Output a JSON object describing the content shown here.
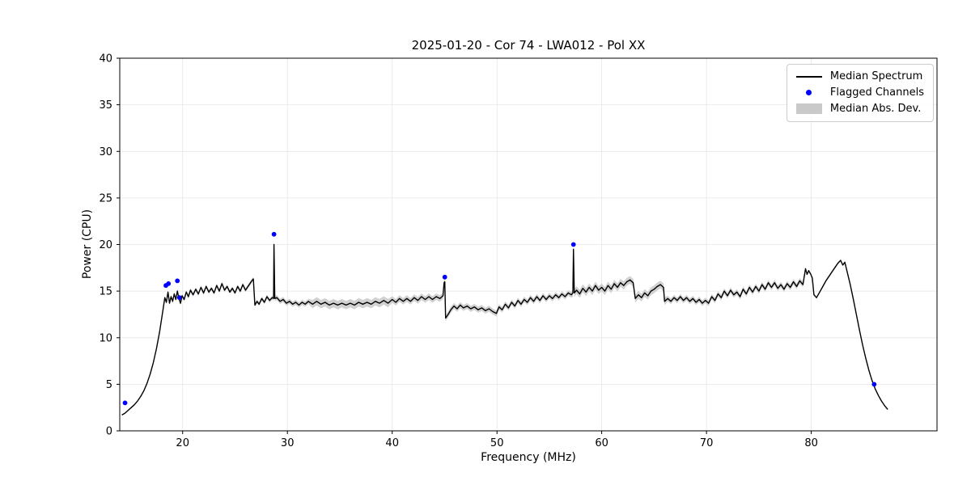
{
  "chart_data": {
    "type": "line",
    "title": "2025-01-20 - Cor 74 - LWA012 - Pol XX",
    "xlabel": "Frequency (MHz)",
    "ylabel": "Power (CPU)",
    "xlim": [
      14.0,
      92.0
    ],
    "ylim": [
      0,
      40
    ],
    "xticks": [
      20,
      30,
      40,
      50,
      60,
      70,
      80
    ],
    "yticks": [
      0,
      5,
      10,
      15,
      20,
      25,
      30,
      35,
      40
    ],
    "grid": true,
    "legend_position": "upper right",
    "colors": {
      "grid": "#e6e6e6",
      "axis": "#000000"
    },
    "series": [
      {
        "name": "Median Spectrum",
        "type": "line",
        "color": "#000000",
        "points": [
          [
            14.2,
            1.7
          ],
          [
            14.5,
            1.9
          ],
          [
            14.8,
            2.2
          ],
          [
            15.1,
            2.5
          ],
          [
            15.4,
            2.8
          ],
          [
            15.7,
            3.2
          ],
          [
            16.0,
            3.7
          ],
          [
            16.3,
            4.3
          ],
          [
            16.6,
            5.1
          ],
          [
            16.9,
            6.1
          ],
          [
            17.2,
            7.3
          ],
          [
            17.5,
            8.8
          ],
          [
            17.8,
            10.6
          ],
          [
            18.1,
            12.8
          ],
          [
            18.3,
            14.3
          ],
          [
            18.45,
            13.8
          ],
          [
            18.6,
            14.9
          ],
          [
            18.75,
            13.7
          ],
          [
            18.9,
            14.4
          ],
          [
            19.05,
            13.9
          ],
          [
            19.2,
            14.7
          ],
          [
            19.35,
            14.1
          ],
          [
            19.5,
            15.0
          ],
          [
            19.65,
            14.2
          ],
          [
            19.8,
            13.7
          ],
          [
            19.95,
            14.5
          ],
          [
            20.15,
            14.1
          ],
          [
            20.35,
            14.9
          ],
          [
            20.55,
            14.4
          ],
          [
            20.75,
            15.1
          ],
          [
            21.0,
            14.6
          ],
          [
            21.25,
            15.2
          ],
          [
            21.5,
            14.7
          ],
          [
            21.75,
            15.4
          ],
          [
            22.0,
            14.8
          ],
          [
            22.25,
            15.5
          ],
          [
            22.5,
            14.9
          ],
          [
            22.75,
            15.3
          ],
          [
            23.0,
            14.8
          ],
          [
            23.25,
            15.6
          ],
          [
            23.5,
            15.0
          ],
          [
            23.75,
            15.8
          ],
          [
            24.0,
            15.1
          ],
          [
            24.25,
            15.5
          ],
          [
            24.5,
            14.9
          ],
          [
            24.75,
            15.3
          ],
          [
            25.0,
            14.8
          ],
          [
            25.25,
            15.5
          ],
          [
            25.5,
            15.0
          ],
          [
            25.75,
            15.7
          ],
          [
            26.0,
            15.1
          ],
          [
            26.3,
            15.6
          ],
          [
            26.6,
            16.1
          ],
          [
            26.75,
            16.3
          ],
          [
            26.9,
            13.5
          ],
          [
            27.1,
            13.9
          ],
          [
            27.3,
            13.6
          ],
          [
            27.55,
            14.2
          ],
          [
            27.8,
            13.8
          ],
          [
            28.05,
            14.4
          ],
          [
            28.3,
            14.0
          ],
          [
            28.55,
            14.3
          ],
          [
            28.68,
            14.2
          ],
          [
            28.72,
            20.0
          ],
          [
            28.8,
            14.2
          ],
          [
            29.0,
            14.3
          ],
          [
            29.3,
            13.9
          ],
          [
            29.6,
            14.1
          ],
          [
            29.9,
            13.7
          ],
          [
            30.2,
            13.9
          ],
          [
            30.5,
            13.6
          ],
          [
            30.8,
            13.8
          ],
          [
            31.1,
            13.5
          ],
          [
            31.4,
            13.8
          ],
          [
            31.7,
            13.6
          ],
          [
            32.0,
            13.9
          ],
          [
            32.4,
            13.6
          ],
          [
            32.8,
            13.9
          ],
          [
            33.2,
            13.6
          ],
          [
            33.6,
            13.8
          ],
          [
            34.0,
            13.5
          ],
          [
            34.4,
            13.7
          ],
          [
            34.8,
            13.5
          ],
          [
            35.2,
            13.7
          ],
          [
            35.6,
            13.5
          ],
          [
            36.0,
            13.7
          ],
          [
            36.4,
            13.5
          ],
          [
            36.8,
            13.8
          ],
          [
            37.2,
            13.6
          ],
          [
            37.6,
            13.8
          ],
          [
            38.0,
            13.6
          ],
          [
            38.4,
            13.9
          ],
          [
            38.8,
            13.7
          ],
          [
            39.2,
            14.0
          ],
          [
            39.6,
            13.7
          ],
          [
            40.0,
            14.1
          ],
          [
            40.35,
            13.8
          ],
          [
            40.7,
            14.2
          ],
          [
            41.05,
            13.9
          ],
          [
            41.4,
            14.2
          ],
          [
            41.75,
            13.9
          ],
          [
            42.1,
            14.3
          ],
          [
            42.45,
            14.0
          ],
          [
            42.8,
            14.4
          ],
          [
            43.15,
            14.1
          ],
          [
            43.5,
            14.4
          ],
          [
            43.85,
            14.1
          ],
          [
            44.2,
            14.4
          ],
          [
            44.55,
            14.2
          ],
          [
            44.85,
            14.5
          ],
          [
            44.95,
            15.9
          ],
          [
            45.02,
            16.0
          ],
          [
            45.1,
            12.1
          ],
          [
            45.35,
            12.5
          ],
          [
            45.6,
            13.0
          ],
          [
            45.9,
            13.4
          ],
          [
            46.2,
            13.1
          ],
          [
            46.5,
            13.5
          ],
          [
            46.8,
            13.2
          ],
          [
            47.15,
            13.4
          ],
          [
            47.5,
            13.1
          ],
          [
            47.85,
            13.3
          ],
          [
            48.2,
            13.0
          ],
          [
            48.55,
            13.2
          ],
          [
            48.9,
            12.9
          ],
          [
            49.25,
            13.1
          ],
          [
            49.6,
            12.8
          ],
          [
            49.95,
            12.6
          ],
          [
            50.2,
            13.3
          ],
          [
            50.5,
            13.0
          ],
          [
            50.8,
            13.6
          ],
          [
            51.1,
            13.2
          ],
          [
            51.4,
            13.8
          ],
          [
            51.7,
            13.4
          ],
          [
            52.0,
            14.0
          ],
          [
            52.3,
            13.6
          ],
          [
            52.6,
            14.1
          ],
          [
            52.9,
            13.8
          ],
          [
            53.2,
            14.3
          ],
          [
            53.5,
            13.9
          ],
          [
            53.8,
            14.4
          ],
          [
            54.1,
            14.0
          ],
          [
            54.4,
            14.5
          ],
          [
            54.7,
            14.1
          ],
          [
            55.0,
            14.5
          ],
          [
            55.3,
            14.2
          ],
          [
            55.6,
            14.6
          ],
          [
            55.9,
            14.3
          ],
          [
            56.2,
            14.7
          ],
          [
            56.5,
            14.4
          ],
          [
            56.8,
            14.8
          ],
          [
            57.1,
            14.6
          ],
          [
            57.25,
            14.8
          ],
          [
            57.3,
            19.5
          ],
          [
            57.38,
            14.8
          ],
          [
            57.6,
            15.1
          ],
          [
            57.9,
            14.7
          ],
          [
            58.2,
            15.3
          ],
          [
            58.5,
            14.9
          ],
          [
            58.8,
            15.4
          ],
          [
            59.1,
            15.0
          ],
          [
            59.4,
            15.6
          ],
          [
            59.7,
            15.1
          ],
          [
            60.0,
            15.4
          ],
          [
            60.3,
            15.0
          ],
          [
            60.6,
            15.6
          ],
          [
            60.9,
            15.2
          ],
          [
            61.2,
            15.8
          ],
          [
            61.5,
            15.4
          ],
          [
            61.8,
            15.9
          ],
          [
            62.1,
            15.6
          ],
          [
            62.4,
            16.0
          ],
          [
            62.7,
            16.2
          ],
          [
            63.0,
            15.9
          ],
          [
            63.2,
            14.2
          ],
          [
            63.5,
            14.6
          ],
          [
            63.8,
            14.3
          ],
          [
            64.1,
            14.8
          ],
          [
            64.4,
            14.5
          ],
          [
            64.7,
            15.0
          ],
          [
            65.0,
            15.2
          ],
          [
            65.3,
            15.5
          ],
          [
            65.6,
            15.7
          ],
          [
            65.9,
            15.4
          ],
          [
            66.0,
            13.9
          ],
          [
            66.3,
            14.2
          ],
          [
            66.6,
            13.9
          ],
          [
            66.9,
            14.3
          ],
          [
            67.2,
            14.0
          ],
          [
            67.5,
            14.4
          ],
          [
            67.8,
            14.0
          ],
          [
            68.1,
            14.3
          ],
          [
            68.4,
            13.9
          ],
          [
            68.7,
            14.2
          ],
          [
            69.0,
            13.8
          ],
          [
            69.3,
            14.1
          ],
          [
            69.6,
            13.7
          ],
          [
            69.9,
            14.0
          ],
          [
            70.2,
            13.7
          ],
          [
            70.5,
            14.4
          ],
          [
            70.8,
            14.0
          ],
          [
            71.1,
            14.7
          ],
          [
            71.4,
            14.3
          ],
          [
            71.7,
            15.0
          ],
          [
            72.0,
            14.5
          ],
          [
            72.3,
            15.1
          ],
          [
            72.6,
            14.6
          ],
          [
            72.9,
            14.9
          ],
          [
            73.2,
            14.4
          ],
          [
            73.5,
            15.2
          ],
          [
            73.8,
            14.7
          ],
          [
            74.1,
            15.4
          ],
          [
            74.4,
            14.9
          ],
          [
            74.7,
            15.5
          ],
          [
            75.0,
            15.0
          ],
          [
            75.3,
            15.7
          ],
          [
            75.6,
            15.2
          ],
          [
            75.9,
            15.9
          ],
          [
            76.2,
            15.4
          ],
          [
            76.5,
            15.9
          ],
          [
            76.8,
            15.3
          ],
          [
            77.1,
            15.7
          ],
          [
            77.4,
            15.2
          ],
          [
            77.7,
            15.8
          ],
          [
            78.0,
            15.4
          ],
          [
            78.3,
            16.0
          ],
          [
            78.6,
            15.5
          ],
          [
            78.9,
            16.1
          ],
          [
            79.2,
            15.7
          ],
          [
            79.45,
            17.4
          ],
          [
            79.6,
            16.8
          ],
          [
            79.75,
            17.2
          ],
          [
            79.95,
            16.8
          ],
          [
            80.1,
            16.4
          ],
          [
            80.25,
            14.6
          ],
          [
            80.5,
            14.3
          ],
          [
            80.8,
            14.9
          ],
          [
            81.1,
            15.5
          ],
          [
            81.4,
            16.1
          ],
          [
            81.7,
            16.6
          ],
          [
            82.0,
            17.1
          ],
          [
            82.3,
            17.6
          ],
          [
            82.55,
            18.0
          ],
          [
            82.8,
            18.3
          ],
          [
            83.0,
            17.8
          ],
          [
            83.2,
            18.1
          ],
          [
            83.4,
            17.2
          ],
          [
            83.7,
            15.8
          ],
          [
            84.0,
            14.2
          ],
          [
            84.3,
            12.5
          ],
          [
            84.6,
            10.8
          ],
          [
            84.9,
            9.2
          ],
          [
            85.2,
            7.8
          ],
          [
            85.5,
            6.5
          ],
          [
            85.8,
            5.4
          ],
          [
            86.1,
            4.5
          ],
          [
            86.4,
            3.8
          ],
          [
            86.7,
            3.2
          ],
          [
            87.0,
            2.7
          ],
          [
            87.3,
            2.3
          ]
        ]
      },
      {
        "name": "Flagged Channels",
        "type": "scatter",
        "color": "#0000ff",
        "points": [
          [
            14.5,
            3.0
          ],
          [
            18.4,
            15.6
          ],
          [
            18.65,
            15.8
          ],
          [
            19.5,
            16.1
          ],
          [
            19.7,
            14.3
          ],
          [
            28.72,
            21.1
          ],
          [
            45.02,
            16.5
          ],
          [
            57.3,
            20.0
          ],
          [
            86.0,
            5.0
          ]
        ]
      },
      {
        "name": "Median Abs. Dev.",
        "type": "band",
        "color": "#c9c9c9",
        "around": "Median Spectrum",
        "halfwidth_segments": [
          {
            "from": 14.0,
            "to": 18.2,
            "hw": 0.06
          },
          {
            "from": 18.2,
            "to": 28.6,
            "hw": 0.22
          },
          {
            "from": 28.6,
            "to": 32.0,
            "hw": 0.28
          },
          {
            "from": 32.0,
            "to": 39.6,
            "hw": 0.45
          },
          {
            "from": 39.6,
            "to": 44.9,
            "hw": 0.35
          },
          {
            "from": 44.9,
            "to": 50.0,
            "hw": 0.32
          },
          {
            "from": 50.0,
            "to": 57.2,
            "hw": 0.3
          },
          {
            "from": 57.2,
            "to": 66.0,
            "hw": 0.42
          },
          {
            "from": 66.0,
            "to": 79.3,
            "hw": 0.3
          },
          {
            "from": 79.3,
            "to": 83.4,
            "hw": 0.12
          },
          {
            "from": 83.4,
            "to": 87.4,
            "hw": 0.05
          }
        ]
      }
    ]
  }
}
